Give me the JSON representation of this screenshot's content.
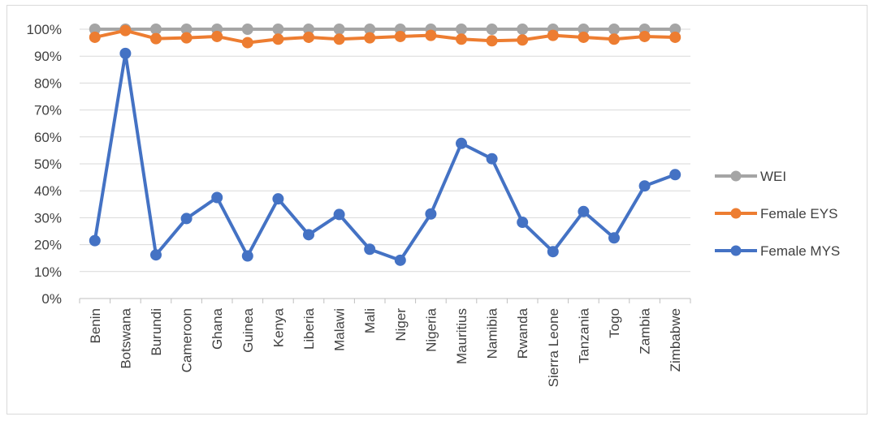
{
  "chart_data": {
    "type": "line",
    "categories": [
      "Benin",
      "Botswana",
      "Burundi",
      "Cameroon",
      "Ghana",
      "Guinea",
      "Kenya",
      "Liberia",
      "Malawi",
      "Mali",
      "Niger",
      "Nigeria",
      "Mauritius",
      "Namibia",
      "Rwanda",
      "Sierra Leone",
      "Tanzania",
      "Togo",
      "Zambia",
      "Zimbabwe"
    ],
    "series": [
      {
        "name": "WEI",
        "color": "#a5a5a5",
        "values": [
          100,
          100,
          100,
          100,
          100,
          100,
          100,
          100,
          100,
          100,
          100,
          100,
          100,
          100,
          100,
          100,
          100,
          100,
          100,
          100
        ]
      },
      {
        "name": "Female EYS",
        "color": "#ed7d31",
        "values": [
          97,
          99.5,
          96.5,
          96.8,
          97.3,
          95,
          96.3,
          97,
          96.3,
          96.8,
          97.3,
          97.7,
          96.3,
          95.7,
          96,
          97.7,
          97,
          96.3,
          97.3,
          97
        ]
      },
      {
        "name": "Female MYS",
        "color": "#4472c4",
        "values": [
          21.5,
          91,
          16.2,
          29.7,
          37.5,
          15.8,
          37,
          23.7,
          31.2,
          18.3,
          14.2,
          31.4,
          57.6,
          51.9,
          28.3,
          17.4,
          32.3,
          22.5,
          41.8,
          46
        ]
      }
    ],
    "y_tick_labels": [
      "0%",
      "10%",
      "20%",
      "30%",
      "40%",
      "50%",
      "60%",
      "70%",
      "80%",
      "90%",
      "100%"
    ],
    "ylim": [
      0,
      100
    ],
    "grid": true,
    "legend_position": "right"
  }
}
